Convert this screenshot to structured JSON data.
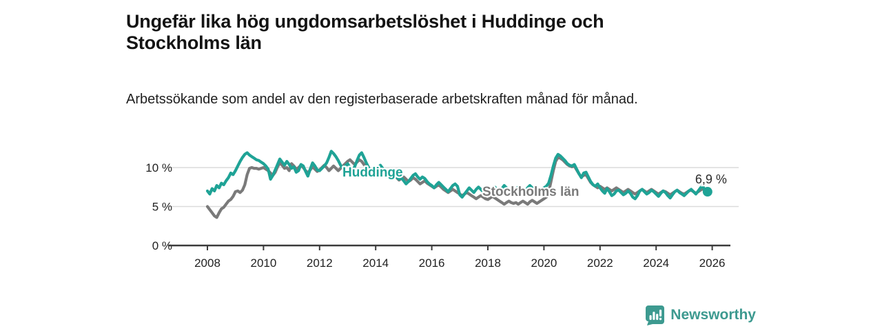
{
  "header": {
    "title": "Ungefär lika hög ungdomsarbetslöshet i Huddinge och Stockholms län",
    "subtitle": "Arbetssökande som andel av den registerbaserade arbetskraften månad för månad."
  },
  "chart_data": {
    "type": "line",
    "title": "Ungefär lika hög ungdomsarbetslöshet i Huddinge och Stockholms län",
    "subtitle": "Arbetssökande som andel av den registerbaserade arbetskraften månad för månad.",
    "x_unit": "month",
    "x_start_year": 2008,
    "x_tick_labels": [
      "2008",
      "2010",
      "2012",
      "2014",
      "2016",
      "2018",
      "2020",
      "2022",
      "2024",
      "2026"
    ],
    "y_tick_labels": [
      "0 %",
      "5 %",
      "10 %"
    ],
    "y_ticks": [
      0,
      5,
      10
    ],
    "ylim": [
      0,
      13.5
    ],
    "grid": "horizontal",
    "legend_position": "inline-labels",
    "end_annotation": "6,9 %",
    "end_annotation_value": 6.9,
    "series": [
      {
        "name": "Stockholms län",
        "color": "#7a7a7a",
        "values": [
          5.0,
          4.6,
          4.2,
          3.8,
          3.6,
          4.2,
          4.7,
          4.9,
          5.3,
          5.7,
          5.9,
          6.3,
          6.9,
          7.0,
          6.8,
          7.1,
          7.8,
          9.1,
          9.9,
          10.0,
          9.9,
          9.9,
          9.8,
          9.9,
          10.0,
          9.8,
          9.6,
          9.3,
          9.0,
          9.4,
          10.1,
          10.6,
          10.3,
          9.9,
          10.0,
          9.6,
          10.5,
          10.2,
          9.8,
          10.0,
          10.3,
          10.0,
          9.6,
          9.3,
          9.7,
          10.1,
          9.8,
          9.5,
          9.7,
          10.0,
          10.3,
          10.0,
          9.6,
          9.9,
          10.2,
          9.9,
          9.6,
          9.9,
          10.2,
          10.5,
          10.8,
          11.0,
          10.7,
          10.4,
          10.7,
          11.0,
          10.8,
          10.4,
          10.0,
          9.7,
          9.4,
          9.6,
          9.8,
          10.1,
          9.8,
          9.4,
          9.1,
          9.4,
          9.7,
          9.4,
          9.0,
          8.7,
          8.4,
          8.6,
          8.8,
          8.5,
          8.2,
          8.4,
          8.7,
          8.5,
          8.2,
          7.9,
          8.1,
          8.3,
          8.0,
          7.8,
          7.6,
          7.4,
          7.6,
          7.8,
          7.5,
          7.2,
          7.0,
          6.8,
          7.0,
          7.2,
          7.0,
          6.8,
          6.6,
          6.4,
          6.6,
          6.8,
          6.6,
          6.4,
          6.2,
          6.0,
          6.2,
          6.4,
          6.2,
          6.0,
          5.9,
          6.1,
          6.3,
          6.1,
          5.9,
          5.7,
          5.5,
          5.3,
          5.5,
          5.7,
          5.5,
          5.4,
          5.5,
          5.3,
          5.5,
          5.7,
          5.5,
          5.3,
          5.6,
          5.8,
          5.6,
          5.4,
          5.6,
          5.8,
          6.0,
          6.2,
          6.8,
          8.2,
          9.6,
          10.8,
          11.3,
          11.2,
          11.0,
          10.7,
          10.4,
          10.2,
          10.1,
          10.2,
          9.7,
          9.2,
          8.8,
          9.0,
          9.1,
          8.6,
          8.1,
          7.8,
          7.6,
          7.4,
          7.6,
          7.4,
          7.2,
          7.4,
          7.2,
          7.0,
          7.2,
          7.4,
          7.2,
          7.0,
          6.8,
          7.0,
          7.2,
          7.0,
          6.8,
          6.6,
          6.8,
          7.0,
          7.2,
          7.0,
          6.8,
          7.0,
          7.2,
          7.0,
          6.8,
          6.6,
          6.8,
          7.0,
          6.9,
          6.7,
          6.5,
          6.7,
          6.9,
          7.1,
          6.9,
          6.7,
          6.6,
          6.8,
          7.0,
          7.1,
          6.9,
          6.7,
          6.9,
          7.1,
          7.3,
          6.9,
          6.8
        ]
      },
      {
        "name": "Huddinge",
        "color": "#1fa396",
        "end_dot": true,
        "values": [
          7.0,
          6.6,
          7.3,
          7.0,
          7.7,
          7.4,
          8.0,
          7.8,
          8.3,
          8.7,
          9.3,
          9.1,
          9.6,
          10.2,
          10.8,
          11.3,
          11.7,
          11.9,
          11.6,
          11.4,
          11.2,
          11.0,
          10.9,
          10.7,
          10.5,
          10.2,
          9.8,
          8.5,
          9.0,
          9.7,
          10.4,
          11.1,
          10.7,
          10.3,
          10.8,
          10.4,
          9.9,
          10.1,
          9.4,
          9.6,
          10.4,
          10.2,
          9.5,
          8.9,
          9.8,
          10.6,
          10.2,
          9.7,
          9.6,
          9.9,
          10.2,
          10.6,
          11.3,
          12.1,
          11.8,
          11.4,
          10.9,
          10.3,
          9.9,
          10.2,
          10.5,
          10.0,
          9.6,
          10.1,
          10.9,
          11.6,
          11.9,
          11.3,
          10.6,
          10.0,
          9.5,
          9.8,
          9.4,
          9.8,
          10.3,
          9.9,
          9.4,
          9.0,
          9.3,
          9.6,
          9.2,
          8.8,
          8.5,
          8.7,
          8.3,
          7.9,
          8.2,
          8.6,
          9.0,
          9.2,
          8.8,
          8.5,
          8.8,
          8.6,
          8.2,
          7.9,
          7.7,
          7.4,
          7.8,
          8.1,
          7.8,
          7.5,
          7.2,
          6.9,
          7.3,
          7.7,
          7.9,
          7.6,
          6.5,
          6.2,
          6.6,
          7.0,
          7.4,
          7.1,
          6.8,
          7.2,
          7.5,
          7.2,
          6.9,
          6.7,
          6.5,
          6.8,
          7.2,
          7.5,
          7.1,
          6.8,
          7.3,
          7.7,
          7.4,
          7.0,
          6.7,
          6.9,
          7.2,
          7.5,
          7.1,
          6.8,
          7.0,
          7.4,
          7.7,
          7.4,
          7.1,
          7.3,
          7.0,
          7.2,
          7.4,
          7.6,
          8.0,
          9.0,
          10.2,
          11.2,
          11.7,
          11.5,
          11.2,
          10.9,
          10.5,
          10.3,
          10.2,
          10.4,
          9.8,
          9.2,
          8.7,
          9.3,
          9.4,
          8.8,
          8.2,
          7.8,
          7.6,
          7.9,
          7.4,
          7.0,
          6.7,
          7.3,
          6.9,
          6.4,
          6.6,
          7.0,
          7.1,
          6.8,
          6.5,
          6.7,
          7.0,
          6.7,
          6.2,
          6.0,
          6.4,
          7.0,
          7.2,
          6.9,
          6.6,
          6.8,
          7.1,
          6.9,
          6.6,
          6.3,
          6.7,
          7.0,
          6.8,
          6.4,
          6.1,
          6.5,
          6.9,
          7.1,
          6.8,
          6.6,
          6.4,
          6.7,
          7.0,
          7.2,
          6.9,
          6.6,
          7.0,
          7.4,
          7.7,
          6.8,
          6.9
        ]
      }
    ],
    "colors": {
      "axis": "#3a3a3a",
      "grid": "#dcdcdc",
      "tick_label": "#222222",
      "annotation": "#2b2b2b"
    }
  },
  "footer": {
    "brand": "Newsworthy",
    "brand_color": "#3d9a90",
    "logo_icon": "bar-chart-speech-bubble"
  }
}
